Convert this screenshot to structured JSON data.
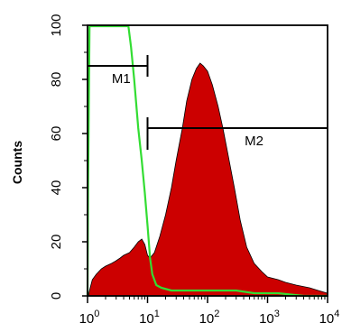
{
  "chart_data": {
    "type": "area",
    "ylabel": "Counts",
    "xlabel": "",
    "x_scale": "log",
    "xlim": [
      1,
      10000
    ],
    "ylim": [
      0,
      100
    ],
    "x_ticks": [
      {
        "base": "10",
        "exp": "0",
        "value": 1
      },
      {
        "base": "10",
        "exp": "1",
        "value": 10
      },
      {
        "base": "10",
        "exp": "2",
        "value": 100
      },
      {
        "base": "10",
        "exp": "3",
        "value": 1000
      },
      {
        "base": "10",
        "exp": "4",
        "value": 10000
      }
    ],
    "y_ticks": [
      "0",
      "20",
      "40",
      "60",
      "80",
      "100"
    ],
    "series": [
      {
        "fill": "#cc0000",
        "style": "filled histogram",
        "points": [
          [
            1.05,
            1
          ],
          [
            1.2,
            6
          ],
          [
            1.4,
            8
          ],
          [
            1.7,
            10
          ],
          [
            2.0,
            11
          ],
          [
            2.5,
            12
          ],
          [
            3.0,
            13
          ],
          [
            3.5,
            14
          ],
          [
            4.0,
            15
          ],
          [
            5.0,
            16
          ],
          [
            6.0,
            18
          ],
          [
            7.0,
            20
          ],
          [
            8.0,
            21
          ],
          [
            9.0,
            19
          ],
          [
            10,
            15
          ],
          [
            11,
            14
          ],
          [
            13,
            16
          ],
          [
            16,
            22
          ],
          [
            20,
            30
          ],
          [
            25,
            40
          ],
          [
            30,
            50
          ],
          [
            38,
            62
          ],
          [
            45,
            72
          ],
          [
            55,
            80
          ],
          [
            65,
            84
          ],
          [
            75,
            86
          ],
          [
            85,
            85
          ],
          [
            100,
            83
          ],
          [
            120,
            78
          ],
          [
            150,
            70
          ],
          [
            180,
            62
          ],
          [
            220,
            52
          ],
          [
            280,
            40
          ],
          [
            350,
            28
          ],
          [
            450,
            18
          ],
          [
            600,
            12
          ],
          [
            800,
            9
          ],
          [
            1000,
            7
          ],
          [
            1500,
            6
          ],
          [
            2000,
            5
          ],
          [
            3000,
            4
          ],
          [
            5000,
            3
          ],
          [
            7000,
            2
          ],
          [
            10000,
            1
          ]
        ]
      },
      {
        "color": "#33dd33",
        "style": "outline histogram",
        "points": [
          [
            1.0,
            0
          ],
          [
            1.02,
            40
          ],
          [
            1.08,
            100
          ],
          [
            1.3,
            100
          ],
          [
            1.6,
            100
          ],
          [
            2.0,
            100
          ],
          [
            3.0,
            100
          ],
          [
            4.0,
            100
          ],
          [
            4.8,
            100
          ],
          [
            5.3,
            92
          ],
          [
            6.0,
            80
          ],
          [
            7.0,
            62
          ],
          [
            8.0,
            50
          ],
          [
            9.0,
            38
          ],
          [
            10,
            26
          ],
          [
            11,
            14
          ],
          [
            12,
            8
          ],
          [
            14,
            4
          ],
          [
            17,
            3
          ],
          [
            25,
            2
          ],
          [
            40,
            2
          ],
          [
            80,
            2
          ],
          [
            150,
            2
          ],
          [
            300,
            2
          ],
          [
            600,
            1
          ],
          [
            1500,
            1
          ],
          [
            4000,
            0
          ],
          [
            10000,
            0
          ]
        ]
      }
    ],
    "markers": [
      {
        "label": "M1",
        "from": 1,
        "to": 10,
        "y": 85
      },
      {
        "label": "M2",
        "from": 10,
        "to": 10000,
        "y": 62
      }
    ]
  }
}
